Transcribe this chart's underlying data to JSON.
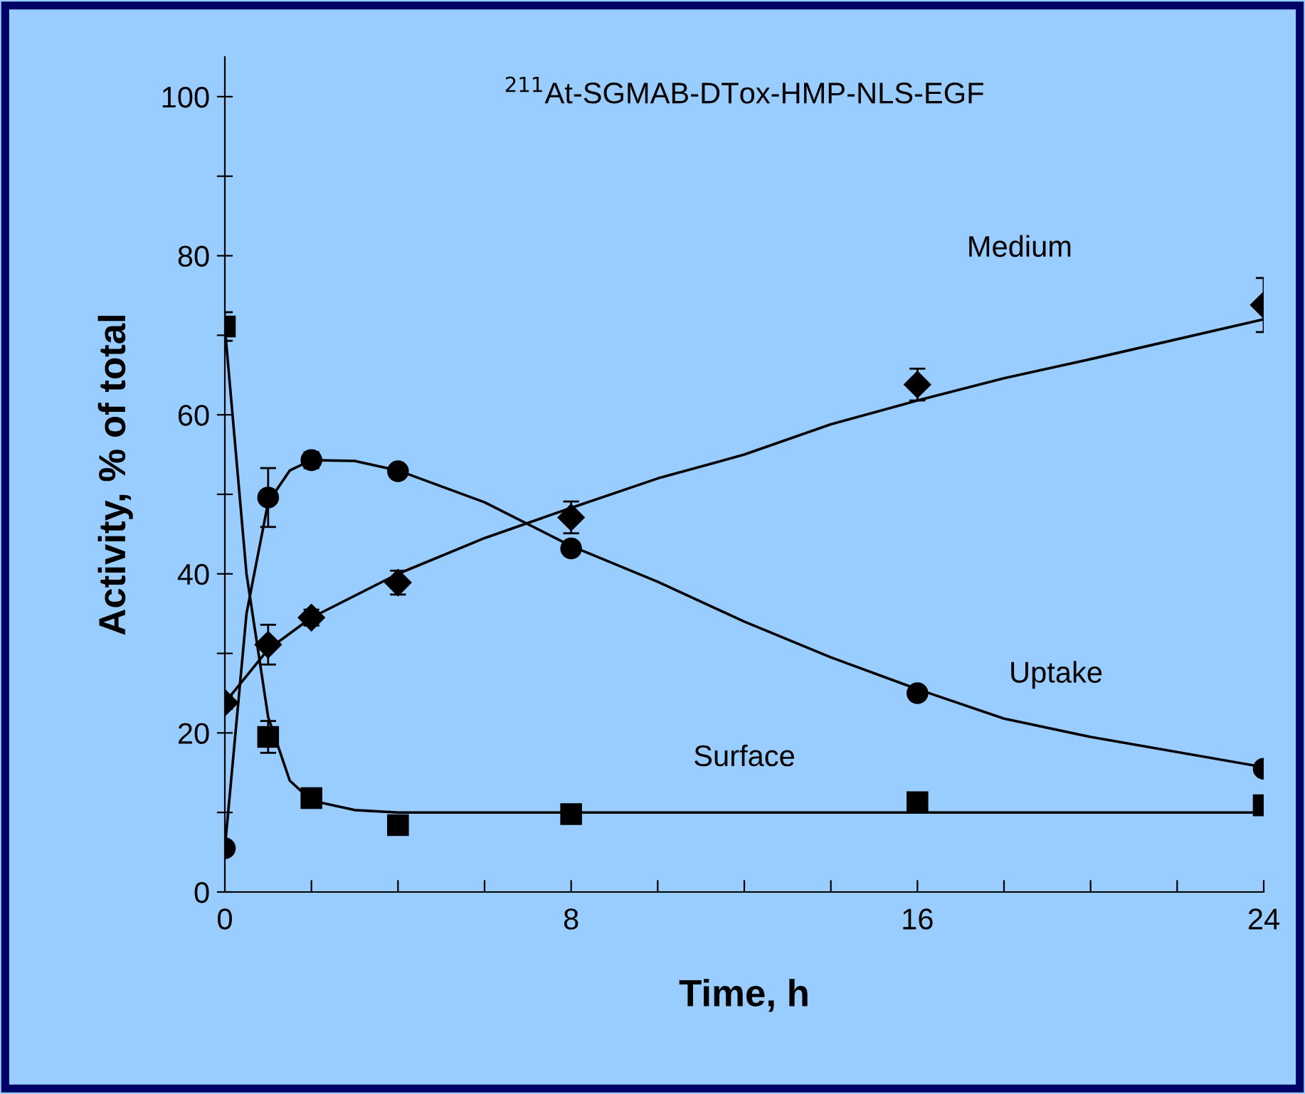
{
  "chart_data": {
    "type": "scatter",
    "title": "$^{211}$At-SGMAB-DTox-HMP-NLS-EGF",
    "xlabel": "Time, h",
    "ylabel": "Activity, % of total",
    "xlim": [
      0,
      24
    ],
    "ylim": [
      0,
      105
    ],
    "xticks": [
      0,
      {
        "value": 2,
        "label": null
      },
      {
        "value": 4,
        "label": null
      },
      {
        "value": 6,
        "label": null
      },
      8,
      {
        "value": 10,
        "label": null
      },
      {
        "value": 12,
        "label": null
      },
      {
        "value": 14,
        "label": null
      },
      16,
      {
        "value": 18,
        "label": null
      },
      {
        "value": 20,
        "label": null
      },
      {
        "value": 22,
        "label": null
      },
      24
    ],
    "yticks": [
      0,
      {
        "value": 10,
        "label": null
      },
      20,
      {
        "value": 30,
        "label": null
      },
      40,
      {
        "value": 50,
        "label": null
      },
      60,
      {
        "value": 70,
        "label": null
      },
      80,
      {
        "value": 90,
        "label": null
      },
      100
    ],
    "grid": false,
    "legend": false,
    "series": [
      {
        "marker": "square",
        "color": "#000000",
        "x": [
          0,
          1,
          2,
          4,
          8,
          16,
          24
        ],
        "values": [
          71.1,
          19.5,
          11.8,
          8.4,
          9.8,
          11.3,
          10.9
        ],
        "errors": [
          1.8,
          2,
          0.8,
          0.8,
          0.6,
          0.8,
          0.8
        ]
      },
      {
        "marker": "circle",
        "color": "#000000",
        "x": [
          0,
          1,
          2,
          4,
          8,
          16,
          24
        ],
        "values": [
          5.5,
          49.6,
          54.3,
          52.9,
          43.2,
          25.0,
          15.5
        ],
        "errors": [
          0.5,
          3.7,
          1,
          0.5,
          0.8,
          0.5,
          0.5
        ]
      },
      {
        "marker": "diamond",
        "color": "#000000",
        "x": [
          0,
          1,
          2,
          4,
          8,
          16,
          24
        ],
        "values": [
          23.8,
          31.1,
          34.5,
          38.9,
          47.1,
          63.8,
          73.8
        ],
        "errors": [
          0.8,
          2.5,
          1,
          1.5,
          2,
          2,
          3.4
        ]
      },
      {
        "type": "line",
        "color": "#000000",
        "x": [
          0,
          0.5,
          1,
          1.5,
          2,
          3,
          4,
          24
        ],
        "values": [
          71,
          40,
          22,
          14,
          11.5,
          10.3,
          10,
          10
        ]
      },
      {
        "type": "line",
        "color": "#000000",
        "x": [
          0,
          0.5,
          1,
          1.5,
          2,
          3,
          4,
          6,
          8,
          10,
          12,
          14,
          16,
          18,
          20,
          24
        ],
        "values": [
          5.5,
          35,
          49,
          53,
          54.3,
          54.2,
          53,
          49,
          43.5,
          39,
          34,
          29.5,
          25.5,
          21.8,
          19.5,
          15.7
        ]
      },
      {
        "type": "line",
        "color": "#000000",
        "x": [
          0,
          1,
          2,
          4,
          6,
          8,
          10,
          12,
          14,
          16,
          18,
          20,
          24
        ],
        "values": [
          23.8,
          30.5,
          34.5,
          40,
          44.5,
          48.3,
          52,
          55,
          58.8,
          61.8,
          64.6,
          67,
          72
        ]
      }
    ],
    "annotations": [
      "Medium",
      "Uptake",
      "Surface"
    ]
  }
}
